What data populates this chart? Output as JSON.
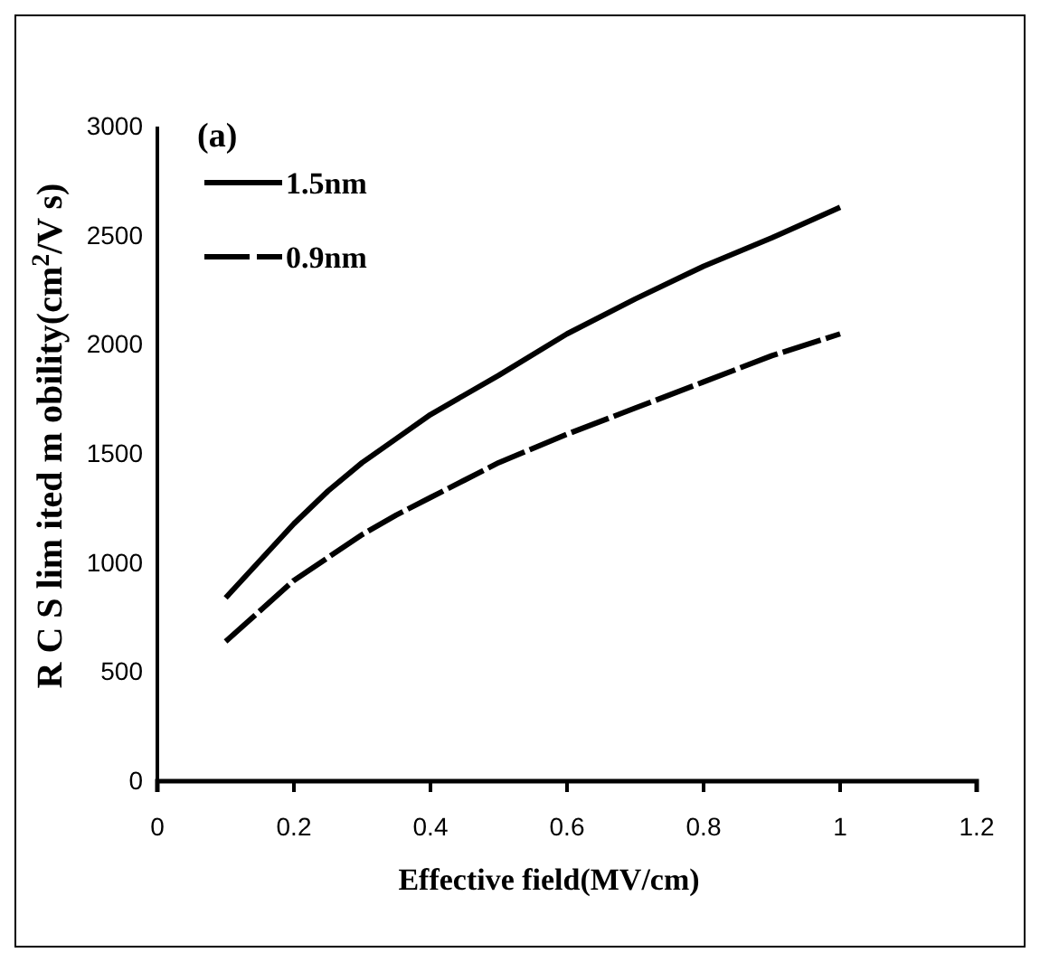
{
  "chart_data": {
    "type": "line",
    "xlabel": "Effective field(MV/cm)",
    "ylabel": "R C S lim ited m obility(cm$^{2}$/V s)",
    "annotations": [
      "(a)"
    ],
    "xlim": [
      0,
      1.2
    ],
    "xticks": [
      0,
      0.2,
      0.4,
      0.6,
      0.8,
      1,
      1.2
    ],
    "ylim": [
      0,
      3000
    ],
    "yticks": [
      0,
      500,
      1000,
      1500,
      2000,
      2500,
      3000
    ],
    "grid": false,
    "legend": "top left",
    "series": [
      {
        "name": "1.5nm",
        "color": "#000000",
        "line_style": "solid",
        "x": [
          0.1,
          0.15,
          0.2,
          0.25,
          0.3,
          0.35,
          0.4,
          0.5,
          0.6,
          0.7,
          0.8,
          0.9,
          1.0
        ],
        "values": [
          840,
          1010,
          1180,
          1330,
          1460,
          1570,
          1680,
          1860,
          2050,
          2210,
          2360,
          2490,
          2630
        ]
      },
      {
        "name": "0.9nm",
        "color": "#000000",
        "line_style": "dashed",
        "x": [
          0.1,
          0.2,
          0.3,
          0.35,
          0.4,
          0.45,
          0.5,
          0.6,
          0.7,
          0.8,
          0.9,
          1.0
        ],
        "values": [
          640,
          920,
          1130,
          1220,
          1300,
          1380,
          1460,
          1590,
          1710,
          1830,
          1950,
          2050
        ]
      }
    ]
  }
}
